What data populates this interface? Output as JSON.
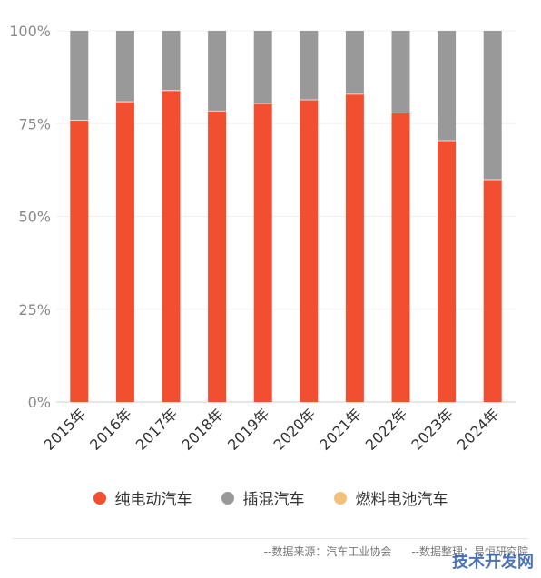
{
  "chart_data": {
    "type": "bar",
    "stacked": true,
    "categories": [
      "2015年",
      "2016年",
      "2017年",
      "2018年",
      "2019年",
      "2020年",
      "2021年",
      "2022年",
      "2023年",
      "2024年"
    ],
    "series": [
      {
        "name": "纯电动汽车",
        "color": "#f24e30",
        "values": [
          76,
          81,
          84,
          78.5,
          80.5,
          81.5,
          83,
          78,
          70.5,
          60
        ]
      },
      {
        "name": "插混汽车",
        "color": "#999999",
        "values": [
          24,
          19,
          16,
          21.5,
          19.5,
          18.5,
          17,
          22,
          29.5,
          40
        ]
      },
      {
        "name": "燃料电池汽车",
        "color": "#f3c07a",
        "values": [
          0,
          0,
          0,
          0,
          0,
          0,
          0,
          0,
          0,
          0
        ]
      }
    ],
    "yticks": [
      "0%",
      "25%",
      "50%",
      "75%",
      "100%"
    ],
    "ylim": [
      0,
      100
    ],
    "grid": true,
    "legend_position": "bottom"
  },
  "footer": {
    "source": "--数据来源：汽车工业协会",
    "compiled_by": "--数据整理：易恒研究院"
  },
  "watermark": "技术开发网"
}
